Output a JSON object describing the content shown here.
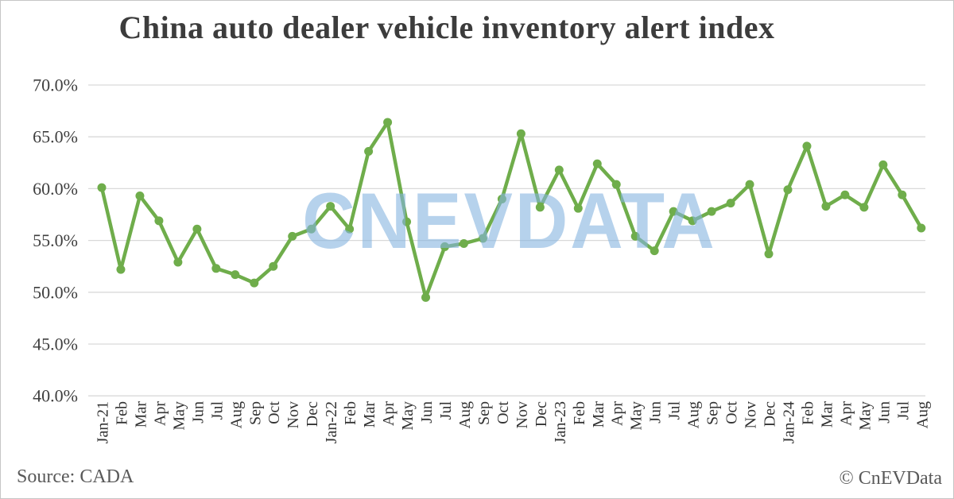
{
  "chart_data": {
    "type": "line",
    "title": "China auto dealer vehicle inventory alert index",
    "x": [
      "Jan-21",
      "Feb",
      "Mar",
      "Apr",
      "May",
      "Jun",
      "Jul",
      "Aug",
      "Sep",
      "Oct",
      "Nov",
      "Dec",
      "Jan-22",
      "Feb",
      "Mar",
      "Apr",
      "May",
      "Jun",
      "Jul",
      "Aug",
      "Sep",
      "Oct",
      "Nov",
      "Dec",
      "Jan-23",
      "Feb",
      "Mar",
      "Apr",
      "May",
      "Jun",
      "Jul",
      "Aug",
      "Sep",
      "Oct",
      "Nov",
      "Dec",
      "Jan-24",
      "Feb",
      "Mar",
      "Apr",
      "May",
      "Jun",
      "Jul",
      "Aug"
    ],
    "values": [
      60.1,
      52.2,
      59.3,
      56.9,
      52.9,
      56.1,
      52.3,
      51.7,
      50.9,
      52.5,
      55.4,
      56.1,
      58.3,
      56.1,
      63.6,
      66.4,
      56.8,
      49.5,
      54.4,
      54.7,
      55.2,
      59.0,
      65.3,
      58.2,
      61.8,
      58.1,
      62.4,
      60.4,
      55.4,
      54.0,
      57.8,
      56.9,
      57.8,
      58.6,
      60.4,
      53.7,
      59.9,
      64.1,
      58.3,
      59.4,
      58.2,
      62.3,
      59.4,
      56.2
    ],
    "ylim": [
      40,
      70
    ],
    "y_step": 5,
    "y_ticks": [
      "70.0%",
      "65.0%",
      "60.0%",
      "55.0%",
      "50.0%",
      "45.0%",
      "40.0%"
    ],
    "grid": "horizontal",
    "legend": "none",
    "line_color": "#6fad4b",
    "gridline_color": "#d9d9d9",
    "tick_label_color": "#3f3f3f"
  },
  "watermark": {
    "text": "CNEVDATA",
    "color": "#b6d2ec"
  },
  "footer": {
    "source": "Source: CADA",
    "copyright": "© CnEVData"
  }
}
